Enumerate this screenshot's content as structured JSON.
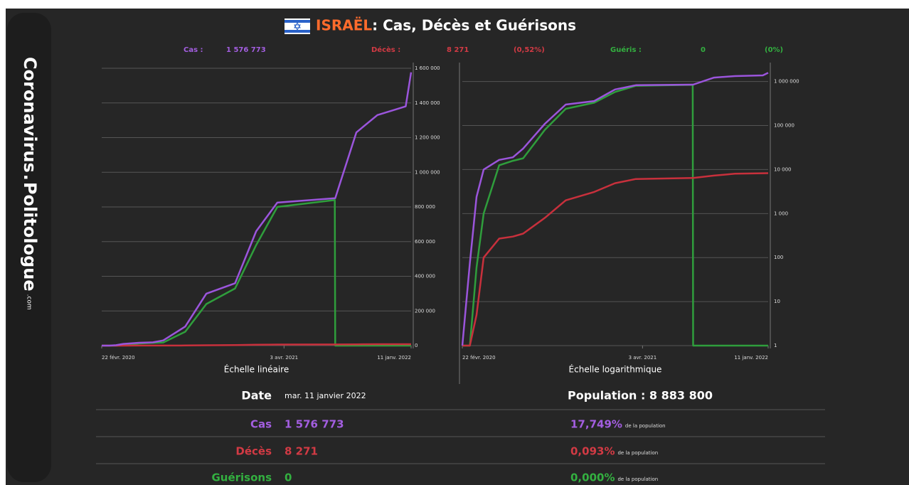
{
  "header": {
    "brand": {
      "main": "Coronavirus",
      "dot": ".",
      "site": "Politologue",
      "tld": ".com"
    },
    "title_country": "ISRAËL",
    "title_rest": " : Cas, Décès et Guérisons",
    "summary": [
      {
        "label": "Cas :",
        "value": "1 576 773",
        "color": "#a35ee0"
      },
      {
        "label": "Décès :",
        "value": "8 271",
        "extra": "(0,52%)",
        "color": "#d23a44"
      },
      {
        "label": "Guéris :",
        "value": "0",
        "extra": "(0%)",
        "color": "#33b040"
      }
    ]
  },
  "chart_data": [
    {
      "type": "line",
      "xlabel": "Échelle linéaire",
      "x": [
        "2020-02-22",
        "2020-03-10",
        "2020-03-25",
        "2020-04-10",
        "2020-05-15",
        "2020-06-15",
        "2020-07-08",
        "2020-08-26",
        "2020-10-12",
        "2020-12-15",
        "2021-01-31",
        "2021-03-19",
        "2021-07-25",
        "2021-07-26",
        "2021-09-11",
        "2021-10-28",
        "2021-12-30",
        "2022-01-11"
      ],
      "xlim": [
        "2020-02-22",
        "2022-01-11"
      ],
      "xticks": [
        {
          "value": "2020-02-22",
          "label": "22 févr. 2020"
        },
        {
          "value": "2021-04-03",
          "label": "3 avr. 2021"
        },
        {
          "value": "2022-01-11",
          "label": "11 janv. 2022"
        }
      ],
      "ylim": [
        0,
        1600000
      ],
      "yticks": [
        0,
        {
          "value": 200000,
          "label": "200 000"
        },
        {
          "value": 400000,
          "label": "400 000"
        },
        {
          "value": 600000,
          "label": "600 000"
        },
        {
          "value": 800000,
          "label": "800 000"
        },
        {
          "value": 1000000,
          "label": "1 000 000"
        },
        {
          "value": 1200000,
          "label": "1 200 000"
        },
        {
          "value": 1400000,
          "label": "1 400 000"
        },
        {
          "value": 1600000,
          "label": "1 600 000"
        }
      ],
      "log": false,
      "grid": true,
      "series": [
        {
          "name": "Guérisons",
          "color": "#2f9e3c",
          "values": [
            0,
            0,
            60,
            1000,
            12500,
            15800,
            18000,
            80000,
            240000,
            330000,
            580000,
            800000,
            840000,
            0,
            0,
            0,
            0,
            0
          ]
        },
        {
          "name": "Décès",
          "color": "#c8303c",
          "values": [
            0,
            0,
            5,
            100,
            270,
            300,
            350,
            800,
            2000,
            3100,
            4900,
            6100,
            6450,
            6450,
            7300,
            8050,
            8240,
            8271
          ]
        },
        {
          "name": "Cas",
          "color": "#9b55dc",
          "values": [
            0,
            75,
            2400,
            10000,
            16600,
            19000,
            30000,
            110000,
            300000,
            360000,
            660000,
            825000,
            850000,
            850500,
            1230000,
            1330000,
            1380000,
            1576773
          ]
        }
      ]
    },
    {
      "type": "line",
      "xlabel": "Échelle logarithmique",
      "x": [
        "2020-02-22",
        "2020-03-10",
        "2020-03-25",
        "2020-04-10",
        "2020-05-15",
        "2020-06-15",
        "2020-07-08",
        "2020-08-26",
        "2020-10-12",
        "2020-12-15",
        "2021-01-31",
        "2021-03-19",
        "2021-07-25",
        "2021-07-26",
        "2021-09-11",
        "2021-10-28",
        "2021-12-30",
        "2022-01-11"
      ],
      "xlim": [
        "2020-02-22",
        "2022-01-11"
      ],
      "xticks": [
        {
          "value": "2020-02-22",
          "label": "22 févr. 2020"
        },
        {
          "value": "2021-04-03",
          "label": "3 avr. 2021"
        },
        {
          "value": "2022-01-11",
          "label": "11 janv. 2022"
        }
      ],
      "ylim": [
        1,
        2000000
      ],
      "yticks": [
        1,
        10,
        100,
        {
          "value": 1000,
          "label": "1 000"
        },
        {
          "value": 10000,
          "label": "10 000"
        },
        {
          "value": 100000,
          "label": "100 000"
        },
        {
          "value": 1000000,
          "label": "1 000 000"
        }
      ],
      "log": true,
      "grid": true,
      "series": [
        {
          "name": "Guérisons",
          "color": "#2f9e3c",
          "values": [
            0,
            0,
            60,
            1000,
            12500,
            15800,
            18000,
            80000,
            240000,
            330000,
            580000,
            800000,
            840000,
            0,
            0,
            0,
            0,
            0
          ]
        },
        {
          "name": "Décès",
          "color": "#c8303c",
          "values": [
            0,
            0,
            5,
            100,
            270,
            300,
            350,
            800,
            2000,
            3100,
            4900,
            6100,
            6450,
            6450,
            7300,
            8050,
            8240,
            8271
          ]
        },
        {
          "name": "Cas",
          "color": "#9b55dc",
          "values": [
            0,
            75,
            2400,
            10000,
            16600,
            19000,
            30000,
            110000,
            300000,
            360000,
            660000,
            825000,
            850000,
            850500,
            1230000,
            1330000,
            1380000,
            1576773
          ]
        }
      ]
    }
  ],
  "stats": {
    "date_label": "Date",
    "date_value": "mar. 11 janvier 2022",
    "population": "Population : 8 883 800",
    "rows": [
      {
        "label": "Cas",
        "value": "1 576 773",
        "percent": "17,749%",
        "note": "de la population",
        "color": "#a35ee0"
      },
      {
        "label": "Décès",
        "value": "8 271",
        "percent": "0,093%",
        "note": "de la population",
        "color": "#d23a44"
      },
      {
        "label": "Guérisons",
        "value": "0",
        "percent": "0,000%",
        "note": "de la population",
        "color": "#33b040"
      }
    ]
  }
}
